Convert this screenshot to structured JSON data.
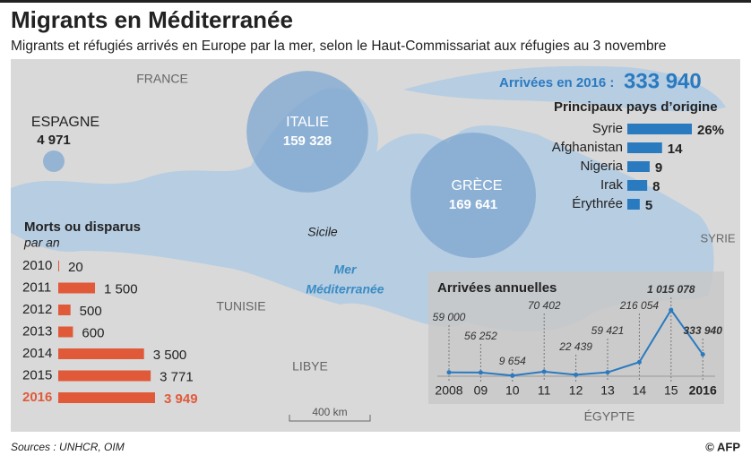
{
  "title": "Migrants en Méditerranée",
  "subtitle": "Migrants et réfugiés arrivés en Europe par la mer, selon le Haut-Commissariat aux réfugies au 3 novembre",
  "map": {
    "countries": [
      "FRANCE",
      "TUNISIE",
      "LIBYE",
      "ÉGYPTE",
      "SYRIE"
    ],
    "island": "Sicile",
    "sea": [
      "Mer",
      "Méditerranée"
    ],
    "scale": "400 km"
  },
  "arrivals_2016": {
    "label": "Arrivées en 2016 :",
    "text": "333 940"
  },
  "chart_data": [
    {
      "type": "bubble",
      "categories": [
        "ESPAGNE",
        "ITALIE",
        "GRÈCE"
      ],
      "values": [
        4971,
        159328,
        169641
      ],
      "value_labels": [
        "4 971",
        "159 328",
        "169 641"
      ],
      "color": "#7ea6cf"
    },
    {
      "type": "hbar",
      "title": "Principaux pays d’origine",
      "categories": [
        "Syrie",
        "Afghanistan",
        "Nigeria",
        "Irak",
        "Érythrée"
      ],
      "values": [
        26,
        14,
        9,
        8,
        5
      ],
      "value_labels": [
        "26%",
        "14",
        "9",
        "8",
        "5"
      ],
      "color": "#2a7ac0"
    },
    {
      "type": "hbar",
      "title": "Morts ou disparus",
      "subtitle": "par an",
      "categories": [
        "2010",
        "2011",
        "2012",
        "2013",
        "2014",
        "2015",
        "2016"
      ],
      "values": [
        20,
        1500,
        500,
        600,
        3500,
        3771,
        3949
      ],
      "value_labels": [
        "20",
        "1 500",
        "500",
        "600",
        "3 500",
        "3 771",
        "3 949"
      ],
      "color": "#e05a3a"
    },
    {
      "type": "line",
      "title": "Arrivées annuelles",
      "x": [
        "2008",
        "09",
        "10",
        "11",
        "12",
        "13",
        "14",
        "15",
        "2016"
      ],
      "values": [
        59000,
        56252,
        9654,
        70402,
        22439,
        59421,
        216054,
        1015078,
        333940
      ],
      "value_labels": [
        "59 000",
        "56 252",
        "9 654",
        "70 402",
        "22 439",
        "59 421",
        "216 054",
        "1 015 078",
        "333 940"
      ],
      "color": "#2a7ac0"
    }
  ],
  "source": "Sources : UNHCR, OIM",
  "credit": "© AFP"
}
